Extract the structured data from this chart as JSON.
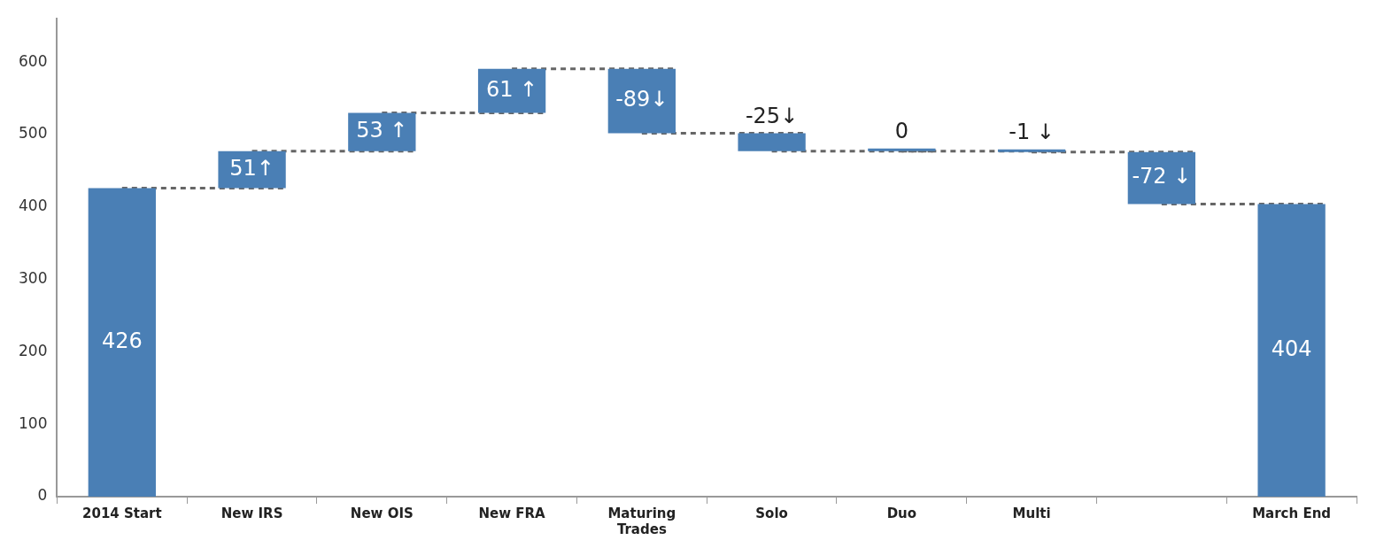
{
  "chart_data": {
    "type": "bar",
    "categories": [
      "2014 Start",
      "New IRS",
      "New OIS",
      "New FRA",
      "Maturing Trades",
      "Solo",
      "Duo",
      "Multi",
      null,
      "March End"
    ],
    "values": [
      426,
      51,
      53,
      61,
      -89,
      -25,
      0,
      -1,
      -72,
      404
    ],
    "base": [
      0,
      426,
      477,
      530,
      591,
      502,
      477,
      477,
      476,
      0
    ],
    "value_labels": [
      "426",
      "51↑",
      "53 ↑",
      "61 ↑",
      "-89↓",
      "-25↓",
      "0",
      "-1 ↓",
      "-72 ↓",
      "404"
    ],
    "color": "#4a7fb5",
    "ylim": [
      0,
      660
    ],
    "yticks": [
      0,
      100,
      200,
      300,
      400,
      500,
      600
    ],
    "grid": false,
    "legend": false
  }
}
